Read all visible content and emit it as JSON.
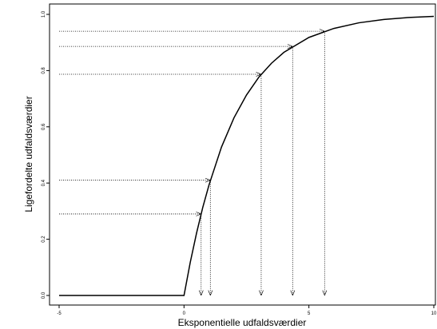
{
  "chart_data": {
    "type": "line",
    "xlabel": "Eksponentielle udfaldsværdier",
    "ylabel": "Ligefordelte udfaldsværdier",
    "xlim": [
      -5,
      10
    ],
    "ylim": [
      0,
      1
    ],
    "xticks": [
      -5,
      0,
      5,
      10
    ],
    "yticks": [
      {
        "value": 0,
        "label": "0.0"
      },
      0.2,
      0.4,
      0.6,
      0.8,
      {
        "value": 1,
        "label": "1.0"
      }
    ],
    "series": [
      {
        "color": "#000000",
        "x": [
          -5,
          0,
          0.25,
          0.5,
          0.75,
          1,
          1.5,
          2,
          2.5,
          3,
          3.5,
          4,
          5,
          6,
          7,
          8,
          9,
          10
        ],
        "values": [
          0,
          0,
          0.118,
          0.221,
          0.313,
          0.393,
          0.528,
          0.632,
          0.713,
          0.777,
          0.826,
          0.865,
          0.918,
          0.95,
          0.97,
          0.982,
          0.989,
          0.993
        ]
      }
    ],
    "arrows": [
      {
        "x": 0.685,
        "y": 0.29
      },
      {
        "x": 1.055,
        "y": 0.41
      },
      {
        "x": 3.09,
        "y": 0.787
      },
      {
        "x": 4.35,
        "y": 0.886
      },
      {
        "x": 5.63,
        "y": 0.94
      }
    ]
  }
}
